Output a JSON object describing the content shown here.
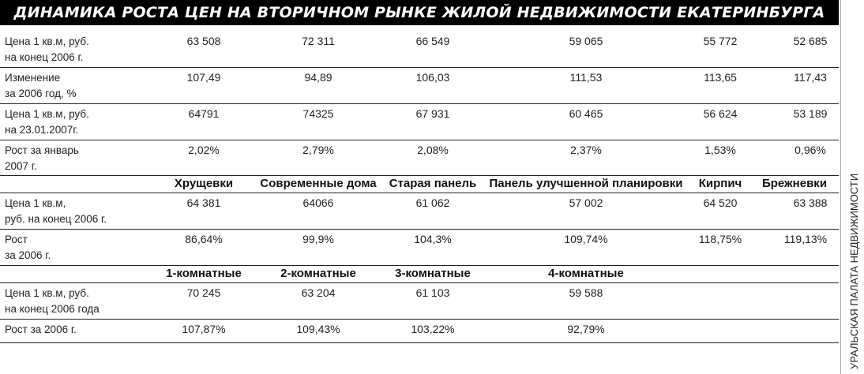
{
  "title": "ДИНАМИКА РОСТА ЦЕН НА ВТОРИЧНОМ РЫНКЕ ЖИЛОЙ НЕДВИЖИМОСТИ ЕКАТЕРИНБУРГА",
  "side_caption": "УРАЛЬСКАЯ ПАЛАТА НЕДВИЖИМОСТИ",
  "section1": {
    "rows": [
      {
        "label": "Цена 1 кв.м, руб.\nна конец 2006 г.",
        "values": [
          "63 508",
          "72 311",
          "66 549",
          "59 065",
          "55 772",
          "52 685"
        ]
      },
      {
        "label": "Изменение\nза 2006 год, %",
        "values": [
          "107,49",
          "94,89",
          "106,03",
          "111,53",
          "113,65",
          "117,43"
        ]
      },
      {
        "label": "Цена 1 кв.м, руб.\nна 23.01.2007г.",
        "values": [
          "64791",
          "74325",
          "67 931",
          "60 465",
          "56 624",
          "53 189"
        ]
      },
      {
        "label": "Рост за январь\n2007 г.",
        "values": [
          "2,02%",
          "2,79%",
          "2,08%",
          "2,37%",
          "1,53%",
          "0,96%"
        ]
      }
    ]
  },
  "section2": {
    "headers": [
      "Хрущевки",
      "Современные дома",
      "Старая панель",
      "Панель улучшенной планировки",
      "Кирпич",
      "Брежневки"
    ],
    "rows": [
      {
        "label": "Цена 1 кв.м,\nруб. на конец 2006 г.",
        "values": [
          "64 381",
          "64066",
          "61 062",
          "57 002",
          "64 520",
          "63 388"
        ]
      },
      {
        "label": "Рост\nза 2006 г.",
        "values": [
          "86,64%",
          "99,9%",
          "104,3%",
          "109,74%",
          "118,75%",
          "119,13%"
        ]
      }
    ]
  },
  "section3": {
    "headers": [
      "1-комнатные",
      "2-комнатные",
      "3-комнатные",
      "4-комнатные"
    ],
    "rows": [
      {
        "label": "Цена 1 кв.м, руб.\nна конец 2006 года",
        "values": [
          "70 245",
          "63 204",
          "61 103",
          "59 588"
        ]
      },
      {
        "label": "Рост за 2006 г.",
        "values": [
          "107,87%",
          "109,43%",
          "103,22%",
          "92,79%"
        ]
      }
    ]
  }
}
